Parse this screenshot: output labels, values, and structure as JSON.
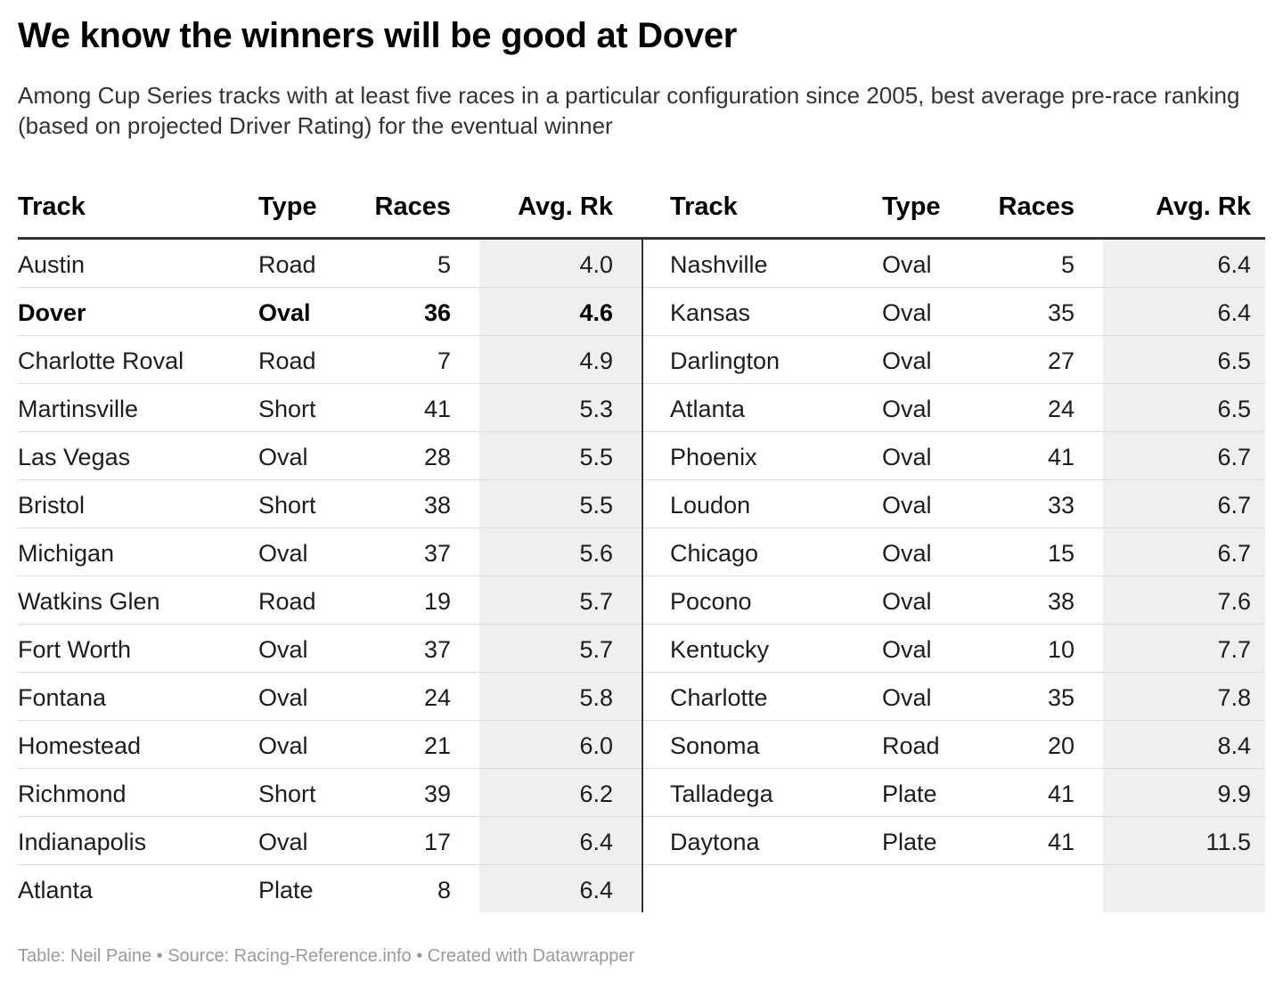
{
  "title": "We know the winners will be good at Dover",
  "subtitle": "Among Cup Series tracks with at least five races in a particular configuration since 2005, best average pre-race ranking (based on projected Driver Rating) for the eventual winner",
  "columns": [
    "Track",
    "Type",
    "Races",
    "Avg. Rk"
  ],
  "footer": "Table: Neil Paine • Source: Racing-Reference.info • Created with Datawrapper",
  "colors": {
    "shade": "#efefef",
    "rule": "#333333",
    "footer": "#9a9a9a"
  },
  "chart_data": {
    "type": "table",
    "columns": [
      "Track",
      "Type",
      "Races",
      "Avg. Rk"
    ],
    "highlight_row": "Dover",
    "left": [
      [
        "Austin",
        "Road",
        "5",
        "4.0"
      ],
      [
        "Dover",
        "Oval",
        "36",
        "4.6"
      ],
      [
        "Charlotte Roval",
        "Road",
        "7",
        "4.9"
      ],
      [
        "Martinsville",
        "Short",
        "41",
        "5.3"
      ],
      [
        "Las Vegas",
        "Oval",
        "28",
        "5.5"
      ],
      [
        "Bristol",
        "Short",
        "38",
        "5.5"
      ],
      [
        "Michigan",
        "Oval",
        "37",
        "5.6"
      ],
      [
        "Watkins Glen",
        "Road",
        "19",
        "5.7"
      ],
      [
        "Fort Worth",
        "Oval",
        "37",
        "5.7"
      ],
      [
        "Fontana",
        "Oval",
        "24",
        "5.8"
      ],
      [
        "Homestead",
        "Oval",
        "21",
        "6.0"
      ],
      [
        "Richmond",
        "Short",
        "39",
        "6.2"
      ],
      [
        "Indianapolis",
        "Oval",
        "17",
        "6.4"
      ],
      [
        "Atlanta",
        "Plate",
        "8",
        "6.4"
      ]
    ],
    "right": [
      [
        "Nashville",
        "Oval",
        "5",
        "6.4"
      ],
      [
        "Kansas",
        "Oval",
        "35",
        "6.4"
      ],
      [
        "Darlington",
        "Oval",
        "27",
        "6.5"
      ],
      [
        "Atlanta",
        "Oval",
        "24",
        "6.5"
      ],
      [
        "Phoenix",
        "Oval",
        "41",
        "6.7"
      ],
      [
        "Loudon",
        "Oval",
        "33",
        "6.7"
      ],
      [
        "Chicago",
        "Oval",
        "15",
        "6.7"
      ],
      [
        "Pocono",
        "Oval",
        "38",
        "7.6"
      ],
      [
        "Kentucky",
        "Oval",
        "10",
        "7.7"
      ],
      [
        "Charlotte",
        "Oval",
        "35",
        "7.8"
      ],
      [
        "Sonoma",
        "Road",
        "20",
        "8.4"
      ],
      [
        "Talladega",
        "Plate",
        "41",
        "9.9"
      ],
      [
        "Daytona",
        "Plate",
        "41",
        "11.5"
      ]
    ]
  }
}
